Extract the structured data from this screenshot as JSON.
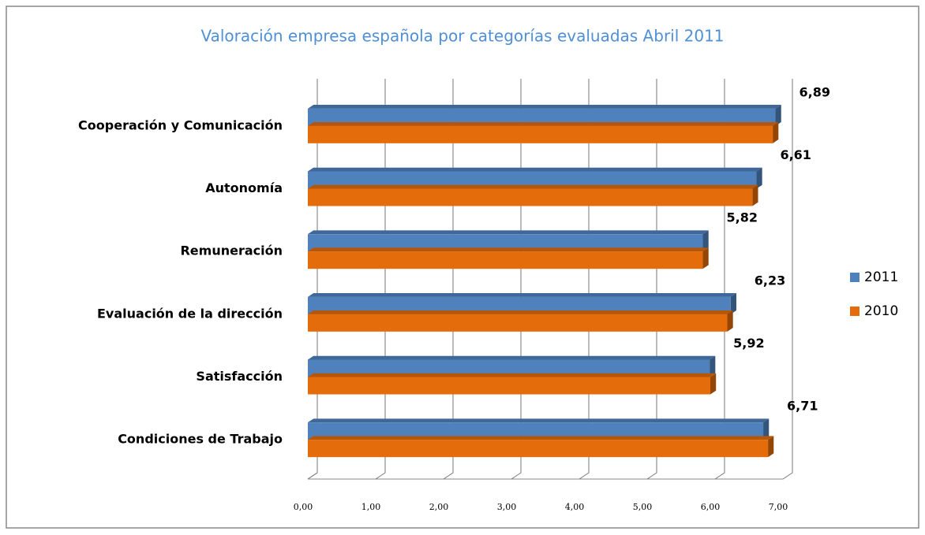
{
  "chart_data": {
    "type": "bar",
    "orientation": "horizontal",
    "title": "Valoración empresa española por categorías evaluadas Abril 2011",
    "categories": [
      "Cooperación y Comunicación",
      "Autonomía",
      "Remuneración",
      "Evaluación de la dirección",
      "Satisfacción",
      "Condiciones de Trabajo"
    ],
    "series": [
      {
        "name": "2011",
        "color": "#4f81bd",
        "values": [
          6.89,
          6.61,
          5.82,
          6.23,
          5.92,
          6.71
        ],
        "value_labels": [
          "6,89",
          "6,61",
          "5,82",
          "6,23",
          "5,92",
          "6,71"
        ]
      },
      {
        "name": "2010",
        "color": "#e46c0a",
        "values": [
          6.85,
          6.55,
          5.82,
          6.18,
          5.93,
          6.78
        ]
      }
    ],
    "xlim": [
      0,
      7
    ],
    "xticks": [
      {
        "value": 0,
        "label": "0,00"
      },
      {
        "value": 1,
        "label": "1,00"
      },
      {
        "value": 2,
        "label": "2,00"
      },
      {
        "value": 3,
        "label": "3,00"
      },
      {
        "value": 4,
        "label": "4,00"
      },
      {
        "value": 5,
        "label": "5,00"
      },
      {
        "value": 6,
        "label": "6,00"
      },
      {
        "value": 7,
        "label": "7,00"
      }
    ],
    "grid": true,
    "legend": "right"
  }
}
